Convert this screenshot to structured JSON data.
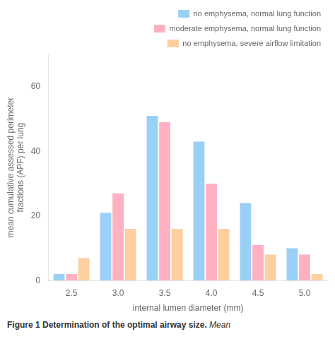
{
  "chart_data": {
    "type": "bar",
    "categories": [
      "2.5",
      "3.0",
      "3.5",
      "4.0",
      "4.5",
      "5.0"
    ],
    "series": [
      {
        "name": "no emphysema, normal lung function",
        "values": [
          2,
          21,
          51,
          43,
          24,
          10
        ]
      },
      {
        "name": "moderate emphysema, normal lung function",
        "values": [
          2,
          27,
          49,
          30,
          11,
          8
        ]
      },
      {
        "name": "no emphysema, severe airflow limitation",
        "values": [
          7,
          16,
          16,
          16,
          8,
          2
        ]
      }
    ],
    "xlabel": "internal lumen diameter (mm)",
    "ylabel": "mean cumulative assessed perimeter\nfractions (APF) per lung",
    "ylim": [
      0,
      70
    ],
    "yticks": [
      0,
      20,
      40,
      60
    ],
    "grid": false,
    "legend": "upper right",
    "annotations": [
      "Figure 1 Determination of the optimal airway size.",
      "Mean"
    ]
  }
}
